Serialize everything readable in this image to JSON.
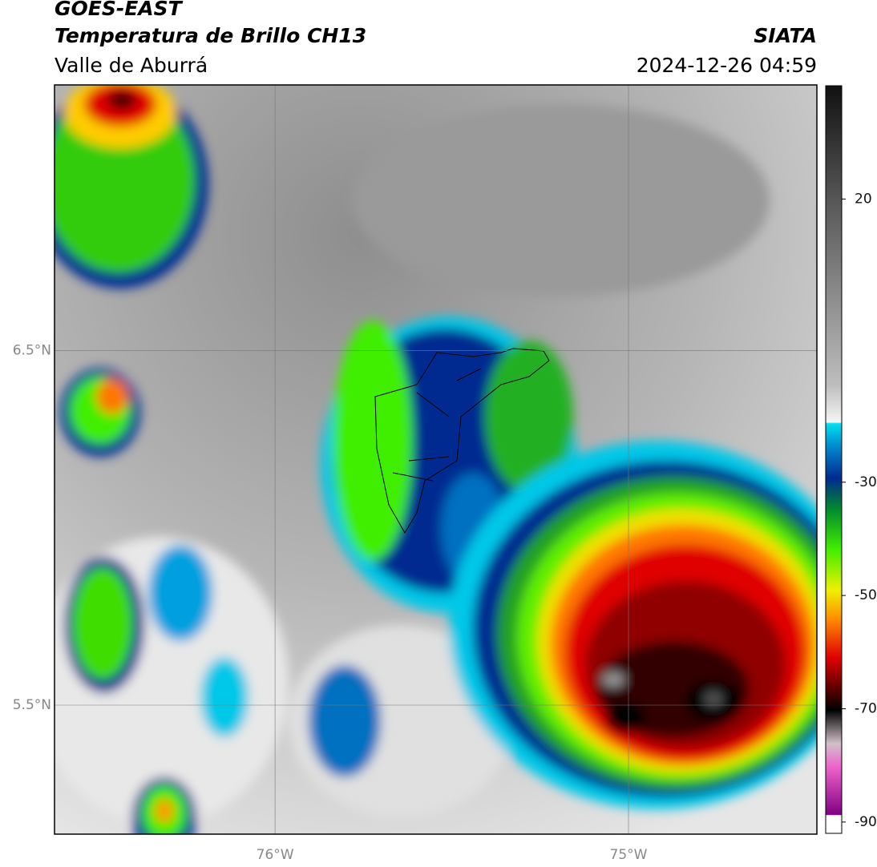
{
  "header": {
    "title": "GOES-EAST",
    "subtitle": "Temperatura de Brillo CH13",
    "source": "SIATA",
    "region": "Valle de Aburrá",
    "timestamp": "2024-12-26 04:59"
  },
  "map": {
    "latlim": [
      5.136,
      7.25
    ],
    "lonlim": [
      -76.624,
      -74.467
    ],
    "latticks": [
      {
        "value": 6.5,
        "label": "6.5°N"
      },
      {
        "value": 5.5,
        "label": "5.5°N"
      }
    ],
    "lonticks": [
      {
        "value": -76,
        "label": "76°W"
      },
      {
        "value": -75,
        "label": "75°W"
      }
    ],
    "grid": true
  },
  "colorbar": {
    "lim": [
      -92,
      40
    ],
    "ticks": [
      20,
      -30,
      -50,
      -70,
      -90
    ]
  }
}
